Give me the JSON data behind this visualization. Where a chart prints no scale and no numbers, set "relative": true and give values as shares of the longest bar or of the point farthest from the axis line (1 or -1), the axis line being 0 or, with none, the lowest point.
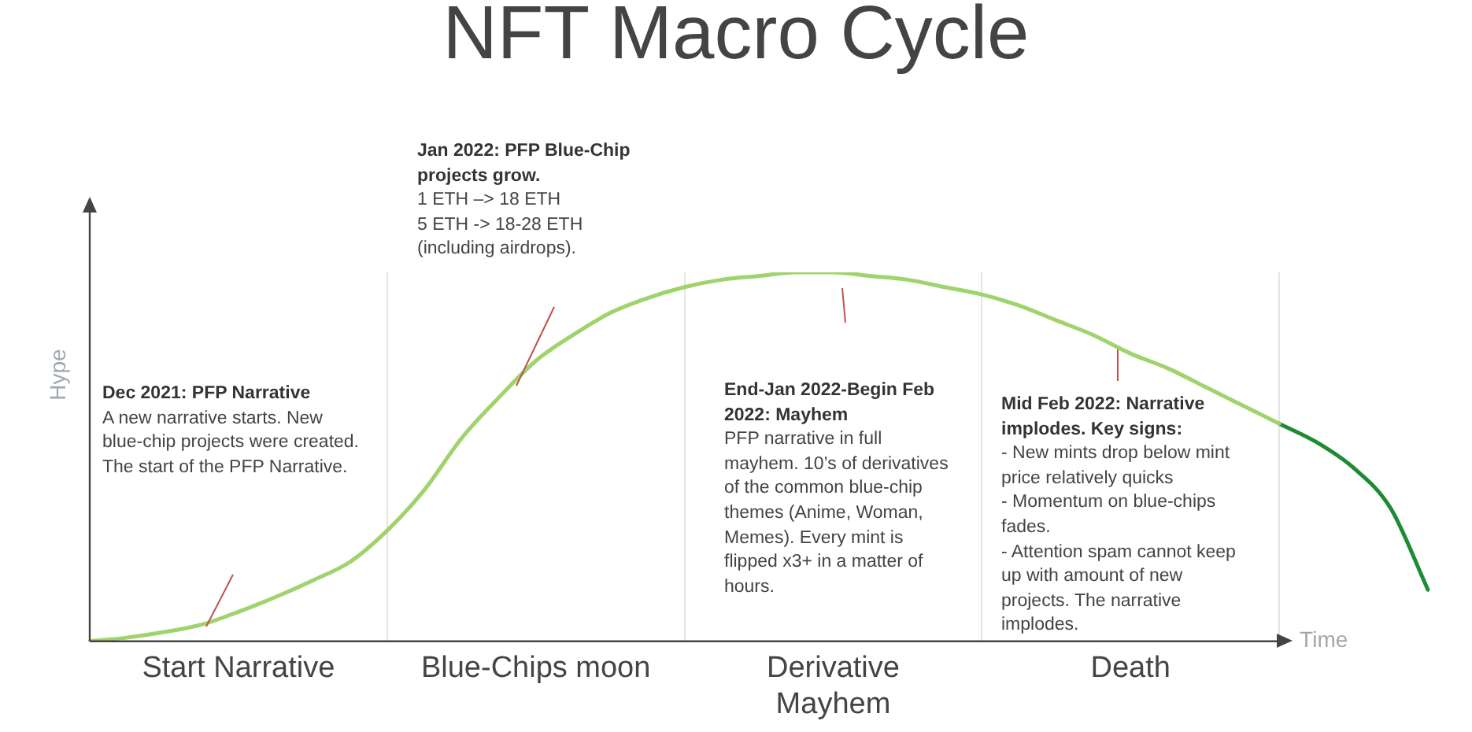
{
  "chart_data": {
    "type": "line",
    "title": "NFT Macro Cycle",
    "xlabel": "Time",
    "ylabel": "Hype",
    "relative": true,
    "grid": "x",
    "legend": false,
    "marker": "none",
    "line_style": "solid",
    "categories": [
      null,
      null,
      null,
      null,
      "Start Narrative",
      null,
      null,
      null,
      null,
      null,
      null,
      null,
      "Blue-Chips moon",
      null,
      null,
      null,
      null,
      null,
      null,
      null,
      "Derivative Mayhem",
      null,
      null,
      null,
      null,
      null,
      null,
      null,
      "Death",
      null,
      null,
      null,
      null,
      null,
      null,
      null,
      null
    ],
    "series": [
      {
        "color": "#9fd36b",
        "values": [
          0,
          0.01,
          0.025,
          0.045,
          0.08,
          0.12,
          0.165,
          0.215,
          0.3,
          0.41,
          0.55,
          0.66,
          0.76,
          0.83,
          0.89,
          0.93,
          0.96,
          0.98,
          0.99,
          1,
          1,
          0.99,
          0.98,
          0.96,
          0.94,
          0.91,
          0.87,
          0.83,
          0.78,
          0.74,
          0.69,
          0.64,
          0.59,
          null,
          null,
          null,
          null
        ]
      },
      {
        "color": "#1e8b34",
        "values": [
          null,
          null,
          null,
          null,
          null,
          null,
          null,
          null,
          null,
          null,
          null,
          null,
          null,
          null,
          null,
          null,
          null,
          null,
          null,
          null,
          null,
          null,
          null,
          null,
          null,
          null,
          null,
          null,
          null,
          null,
          null,
          null,
          0.59,
          0.54,
          0.47,
          0.36,
          0.14
        ]
      }
    ],
    "annotations": [
      "Dec 2021: PFP Narrative\nA new narrative starts. New blue-chip projects were created. The start of the PFP Narrative.",
      "Jan 2022: PFP Blue-Chip projects grow.\n1 ETH –> 18 ETH\n5 ETH -> 18-28 ETH (including airdrops).",
      "End-Jan 2022-Begin Feb 2022: Mayhem\nPFP narrative in full mayhem. 10’s of derivatives of the common blue-chip themes (Anime, Woman, Memes). Every mint is flipped x3+ in a matter of hours.",
      "Mid Feb 2022: Narrative implodes. Key signs:\n- New mints drop below mint price relatively quicks\n- Momentum on blue-chips fades.\n- Attention spam cannot keep up with amount of new projects. The narrative implodes."
    ]
  }
}
